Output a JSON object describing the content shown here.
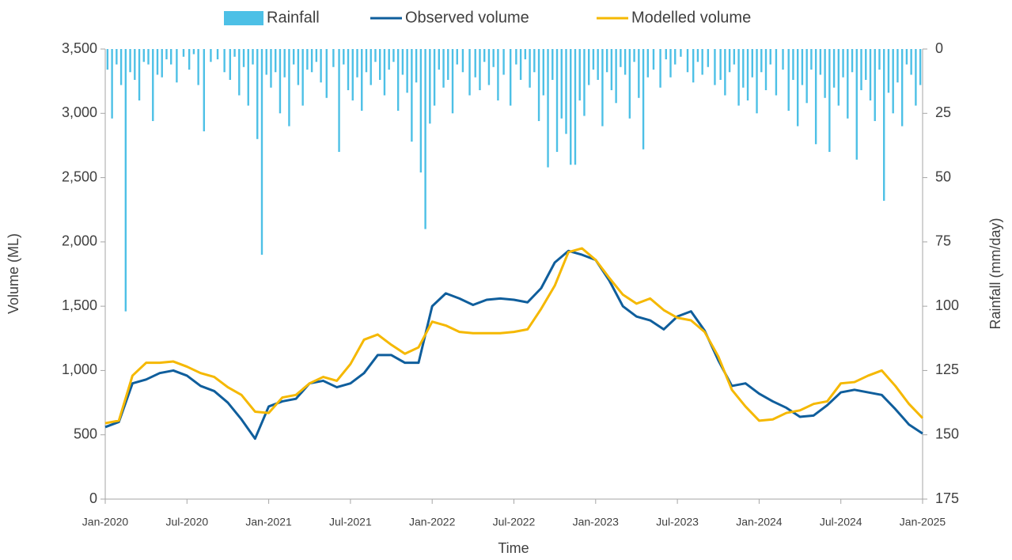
{
  "chart_data": {
    "type": "line",
    "xlabel": "Time",
    "ylabel": "Volume (ML)",
    "y2label": "Rainfall (mm/day)",
    "legend": "top",
    "grid": false,
    "xlim": [
      "2020-01",
      "2025-01"
    ],
    "xticks": [
      {
        "value": "2020-01",
        "label": "Jan-2020"
      },
      {
        "value": "2020-07",
        "label": "Jul-2020"
      },
      {
        "value": "2021-01",
        "label": "Jan-2021"
      },
      {
        "value": "2021-07",
        "label": "Jul-2021"
      },
      {
        "value": "2022-01",
        "label": "Jan-2022"
      },
      {
        "value": "2022-07",
        "label": "Jul-2022"
      },
      {
        "value": "2023-01",
        "label": "Jan-2023"
      },
      {
        "value": "2023-07",
        "label": "Jul-2023"
      },
      {
        "value": "2024-01",
        "label": "Jan-2024"
      },
      {
        "value": "2024-07",
        "label": "Jul-2024"
      },
      {
        "value": "2025-01",
        "label": "Jan-2025"
      }
    ],
    "ylim": [
      0,
      3500
    ],
    "yticks": [
      0,
      500,
      {
        "value": 1000,
        "label": "1,000"
      },
      {
        "value": 1500,
        "label": "1,500"
      },
      {
        "value": 2000,
        "label": "2,000"
      },
      {
        "value": 2500,
        "label": "2,500"
      },
      {
        "value": 3000,
        "label": "3,000"
      },
      {
        "value": 3500,
        "label": "3,500"
      }
    ],
    "y2lim": [
      175,
      0
    ],
    "y2ticks": [
      0,
      25,
      50,
      75,
      100,
      125,
      150,
      175
    ],
    "x": [
      "2020-01",
      "2020-02",
      "2020-03",
      "2020-04",
      "2020-05",
      "2020-06",
      "2020-07",
      "2020-08",
      "2020-09",
      "2020-10",
      "2020-11",
      "2020-12",
      "2021-01",
      "2021-02",
      "2021-03",
      "2021-04",
      "2021-05",
      "2021-06",
      "2021-07",
      "2021-08",
      "2021-09",
      "2021-10",
      "2021-11",
      "2021-12",
      "2022-01",
      "2022-02",
      "2022-03",
      "2022-04",
      "2022-05",
      "2022-06",
      "2022-07",
      "2022-08",
      "2022-09",
      "2022-10",
      "2022-11",
      "2022-12",
      "2023-01",
      "2023-02",
      "2023-03",
      "2023-04",
      "2023-05",
      "2023-06",
      "2023-07",
      "2023-08",
      "2023-09",
      "2023-10",
      "2023-11",
      "2023-12",
      "2024-01",
      "2024-02",
      "2024-03",
      "2024-04",
      "2024-05",
      "2024-06",
      "2024-07",
      "2024-08",
      "2024-09",
      "2024-10",
      "2024-11",
      "2024-12",
      "2025-01"
    ],
    "series": [
      {
        "name": "Rainfall",
        "type": "bar",
        "axis": "y2",
        "color": "#4dc0e6",
        "x": [
          "2020-01",
          "2020-01",
          "2020-01",
          "2020-02",
          "2020-02",
          "2020-02",
          "2020-03",
          "2020-03",
          "2020-03",
          "2020-04",
          "2020-04",
          "2020-04",
          "2020-05",
          "2020-05",
          "2020-05",
          "2020-06",
          "2020-06",
          "2020-07",
          "2020-07",
          "2020-07",
          "2020-08",
          "2020-08",
          "2020-09",
          "2020-09",
          "2020-10",
          "2020-10",
          "2020-10",
          "2020-11",
          "2020-11",
          "2020-11",
          "2020-12",
          "2020-12",
          "2020-12",
          "2021-01",
          "2021-01",
          "2021-01",
          "2021-02",
          "2021-02",
          "2021-02",
          "2021-03",
          "2021-03",
          "2021-03",
          "2021-04",
          "2021-04",
          "2021-04",
          "2021-05",
          "2021-05",
          "2021-06",
          "2021-06",
          "2021-06",
          "2021-07",
          "2021-07",
          "2021-07",
          "2021-08",
          "2021-08",
          "2021-08",
          "2021-09",
          "2021-09",
          "2021-09",
          "2021-10",
          "2021-10",
          "2021-10",
          "2021-11",
          "2021-11",
          "2021-11",
          "2021-12",
          "2021-12",
          "2021-12",
          "2022-01",
          "2022-01",
          "2022-01",
          "2022-02",
          "2022-02",
          "2022-02",
          "2022-03",
          "2022-03",
          "2022-04",
          "2022-04",
          "2022-04",
          "2022-05",
          "2022-05",
          "2022-05",
          "2022-06",
          "2022-06",
          "2022-07",
          "2022-07",
          "2022-07",
          "2022-08",
          "2022-08",
          "2022-08",
          "2022-09",
          "2022-09",
          "2022-09",
          "2022-10",
          "2022-10",
          "2022-10",
          "2022-11",
          "2022-11",
          "2022-11",
          "2022-12",
          "2022-12",
          "2022-12",
          "2023-01",
          "2023-01",
          "2023-01",
          "2023-02",
          "2023-02",
          "2023-02",
          "2023-03",
          "2023-03",
          "2023-03",
          "2023-04",
          "2023-04",
          "2023-04",
          "2023-05",
          "2023-05",
          "2023-06",
          "2023-06",
          "2023-06",
          "2023-07",
          "2023-07",
          "2023-08",
          "2023-08",
          "2023-08",
          "2023-09",
          "2023-09",
          "2023-10",
          "2023-10",
          "2023-10",
          "2023-11",
          "2023-11",
          "2023-11",
          "2023-12",
          "2023-12",
          "2023-12",
          "2024-01",
          "2024-01",
          "2024-01",
          "2024-02",
          "2024-02",
          "2024-03",
          "2024-03",
          "2024-03",
          "2024-04",
          "2024-04",
          "2024-04",
          "2024-05",
          "2024-05",
          "2024-05",
          "2024-06",
          "2024-06",
          "2024-06",
          "2024-07",
          "2024-07",
          "2024-07",
          "2024-08",
          "2024-08",
          "2024-08",
          "2024-09",
          "2024-09",
          "2024-09",
          "2024-10",
          "2024-10",
          "2024-10",
          "2024-11",
          "2024-11",
          "2024-11",
          "2024-12",
          "2024-12",
          "2024-12"
        ],
        "values": [
          8,
          27,
          6,
          14,
          102,
          9,
          12,
          20,
          5,
          6,
          28,
          10,
          11,
          4,
          6,
          13,
          3,
          8,
          2,
          14,
          32,
          5,
          4,
          9,
          12,
          3,
          18,
          7,
          22,
          6,
          35,
          80,
          10,
          15,
          9,
          25,
          11,
          30,
          6,
          14,
          22,
          8,
          9,
          5,
          13,
          19,
          7,
          40,
          6,
          16,
          20,
          11,
          24,
          9,
          14,
          5,
          12,
          18,
          8,
          5,
          24,
          10,
          17,
          36,
          13,
          48,
          70,
          29,
          22,
          8,
          15,
          12,
          25,
          6,
          9,
          18,
          11,
          16,
          5,
          14,
          7,
          20,
          10,
          22,
          6,
          12,
          4,
          15,
          9,
          28,
          18,
          46,
          12,
          40,
          27,
          33,
          45,
          45,
          20,
          26,
          14,
          8,
          12,
          30,
          9,
          16,
          21,
          7,
          10,
          27,
          5,
          19,
          39,
          11,
          8,
          15,
          4,
          11,
          6,
          3,
          9,
          13,
          5,
          10,
          7,
          14,
          12,
          18,
          9,
          6,
          22,
          15,
          20,
          11,
          25,
          9,
          16,
          6,
          18,
          8,
          24,
          12,
          30,
          14,
          21,
          8,
          37,
          10,
          19,
          40,
          15,
          22,
          11,
          27,
          9,
          43,
          16,
          12,
          20,
          28,
          8,
          59,
          17,
          25,
          13,
          30,
          6,
          10,
          22,
          14
        ]
      },
      {
        "name": "Observed volume",
        "type": "line",
        "color": "#0f5e9c",
        "values": [
          560,
          600,
          900,
          930,
          980,
          1000,
          960,
          880,
          840,
          750,
          620,
          470,
          720,
          760,
          780,
          900,
          920,
          870,
          900,
          980,
          1120,
          1120,
          1060,
          1060,
          1500,
          1600,
          1560,
          1510,
          1550,
          1560,
          1550,
          1530,
          1640,
          1840,
          1930,
          1900,
          1860,
          1700,
          1500,
          1420,
          1390,
          1320,
          1420,
          1460,
          1310,
          1080,
          880,
          900,
          820,
          760,
          710,
          640,
          650,
          730,
          830,
          850,
          830,
          810,
          700,
          580,
          510
        ]
      },
      {
        "name": "Modelled volume",
        "type": "line",
        "color": "#f5b800",
        "values": [
          590,
          610,
          960,
          1060,
          1060,
          1070,
          1030,
          980,
          950,
          870,
          810,
          680,
          670,
          790,
          810,
          900,
          950,
          920,
          1050,
          1240,
          1280,
          1200,
          1130,
          1180,
          1380,
          1350,
          1300,
          1290,
          1290,
          1290,
          1300,
          1320,
          1480,
          1660,
          1920,
          1950,
          1860,
          1720,
          1590,
          1520,
          1560,
          1470,
          1410,
          1390,
          1300,
          1110,
          850,
          720,
          610,
          620,
          670,
          690,
          740,
          760,
          900,
          910,
          960,
          1000,
          880,
          740,
          630
        ]
      }
    ]
  }
}
